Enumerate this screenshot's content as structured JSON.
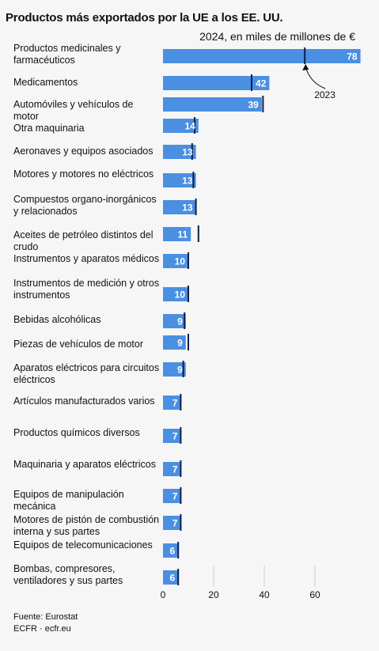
{
  "chart_data": {
    "type": "bar",
    "orientation": "horizontal",
    "title": "Productos más exportados por la UE a los EE. UU.",
    "subtitle": "2024, en miles de millones de €",
    "categories": [
      "Productos medicinales y farmacéuticos",
      "Medicamentos",
      "Automóviles y vehículos de motor",
      "Otra maquinaria",
      "Aeronaves y equipos asociados",
      "Motores y motores no eléctricos",
      "Compuestos organo-inorgánicos y relacionados",
      "Aceites de petróleo distintos del crudo",
      "Instrumentos y aparatos médicos",
      "Instrumentos de medición y otros instrumentos",
      "Bebidas alcohólicas",
      "Piezas de vehículos de motor",
      "Aparatos eléctricos para circuitos eléctricos",
      "Artículos manufacturados varios",
      "Productos químicos diversos",
      "Maquinaria y aparatos eléctricos",
      "Equipos de manipulación mecánica",
      "Motores de pistón de combustión interna y sus partes",
      "Equipos de telecomunicaciones",
      "Bombas, compresores, ventiladores y sus partes"
    ],
    "series": [
      {
        "name": "2024",
        "values": [
          78,
          42,
          39,
          14,
          13,
          13,
          13,
          11,
          10,
          10,
          9,
          9,
          9,
          7,
          7,
          7,
          7,
          7,
          6,
          6
        ]
      },
      {
        "name": "2023",
        "values": [
          56,
          35,
          39.5,
          12.5,
          11.5,
          12,
          13,
          14,
          10,
          10,
          8.5,
          10,
          8,
          7,
          7,
          7,
          7,
          7,
          6,
          6
        ]
      }
    ],
    "value_labels": [
      "78",
      "42",
      "39",
      "14",
      "13",
      "13",
      "13",
      "11",
      "10",
      "10",
      "9",
      "9",
      "9",
      "7",
      "7",
      "7",
      "7",
      "7",
      "6",
      "6"
    ],
    "annotation": "2023",
    "xticks": [
      "0",
      "20",
      "40",
      "60"
    ],
    "xtick_values": [
      0,
      20,
      40,
      60
    ],
    "xlim": [
      0,
      78
    ],
    "colors": {
      "bar": "#4a8fe2",
      "marker": "#0b1f4d",
      "grid": "#cfcfcf"
    }
  },
  "footer": {
    "source": "Fuente: Eurostat",
    "credit": "ECFR · ecfr.eu"
  }
}
